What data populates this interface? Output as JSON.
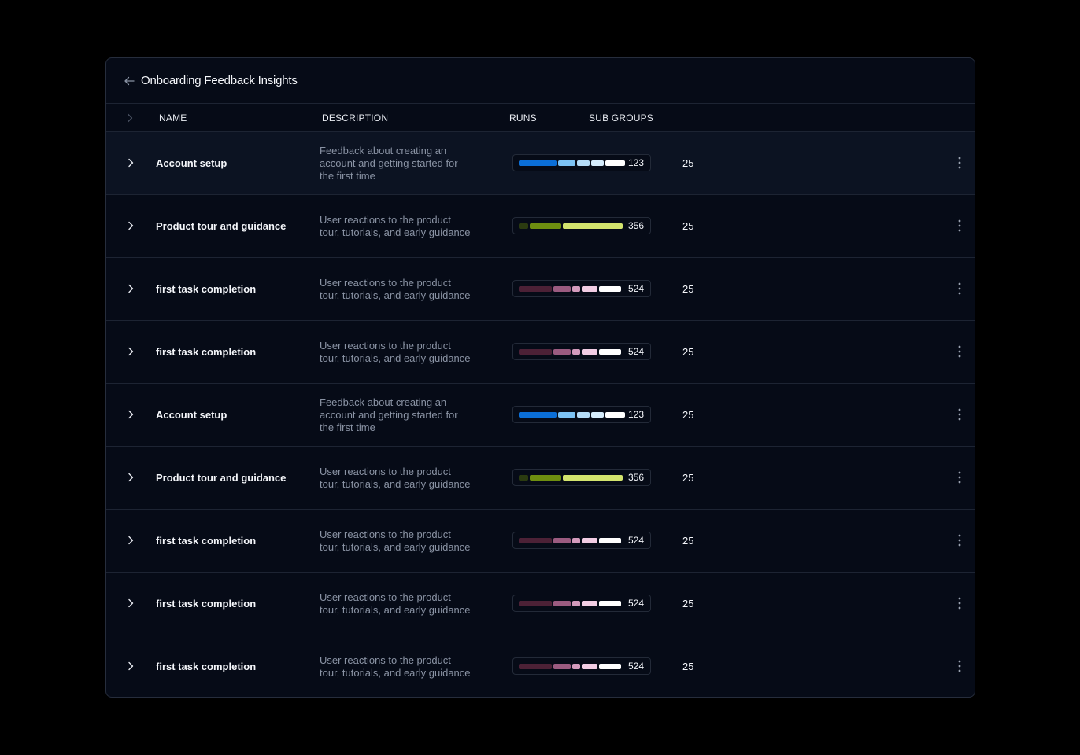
{
  "title": "Onboarding Feedback Insights",
  "columns": {
    "name": "NAME",
    "description": "DESCRIPTION",
    "runs": "RUNS",
    "sub_groups": "SUB GROUPS"
  },
  "colors": {
    "background": "#000000",
    "panel": "#060b17",
    "highlight_row": "#0c1322",
    "blue_palette": [
      "#0b6fd8",
      "#7cc2f4",
      "#b5dcf8",
      "#d4ebfb",
      "#ffffff"
    ],
    "green_palette": [
      "#2b3b10",
      "#6e8e10",
      "#d3e46e"
    ],
    "pink_palette": [
      "#4c2136",
      "#9b5b80",
      "#d49bbd",
      "#f2cde4",
      "#ffffff"
    ]
  },
  "rows": [
    {
      "name": "Account setup",
      "description": [
        "Feedback about creating an",
        "account and getting started for",
        "the first time"
      ],
      "runs": "123",
      "sub_groups": "25",
      "palette": "blue",
      "highlighted": true
    },
    {
      "name": "Product tour and guidance",
      "description": [
        "User reactions to the product",
        "tour, tutorials, and early guidance"
      ],
      "runs": "356",
      "sub_groups": "25",
      "palette": "green",
      "highlighted": false
    },
    {
      "name": "first task completion",
      "description": [
        "User reactions to the product",
        "tour, tutorials, and early guidance"
      ],
      "runs": "524",
      "sub_groups": "25",
      "palette": "pink",
      "highlighted": false
    },
    {
      "name": "first task completion",
      "description": [
        "User reactions to the product",
        "tour, tutorials, and early guidance"
      ],
      "runs": "524",
      "sub_groups": "25",
      "palette": "pink",
      "highlighted": false
    },
    {
      "name": "Account setup",
      "description": [
        "Feedback about creating an",
        "account and getting started for",
        "the first time"
      ],
      "runs": "123",
      "sub_groups": "25",
      "palette": "blue",
      "highlighted": false
    },
    {
      "name": "Product tour and guidance",
      "description": [
        "User reactions to the product",
        "tour, tutorials, and early guidance"
      ],
      "runs": "356",
      "sub_groups": "25",
      "palette": "green",
      "highlighted": false
    },
    {
      "name": "first task completion",
      "description": [
        "User reactions to the product",
        "tour, tutorials, and early guidance"
      ],
      "runs": "524",
      "sub_groups": "25",
      "palette": "pink",
      "highlighted": false
    },
    {
      "name": "first task completion",
      "description": [
        "User reactions to the product",
        "tour, tutorials, and early guidance"
      ],
      "runs": "524",
      "sub_groups": "25",
      "palette": "pink",
      "highlighted": false
    },
    {
      "name": "first task completion",
      "description": [
        "User reactions to the product",
        "tour, tutorials, and early guidance"
      ],
      "runs": "524",
      "sub_groups": "25",
      "palette": "pink",
      "highlighted": false
    }
  ]
}
